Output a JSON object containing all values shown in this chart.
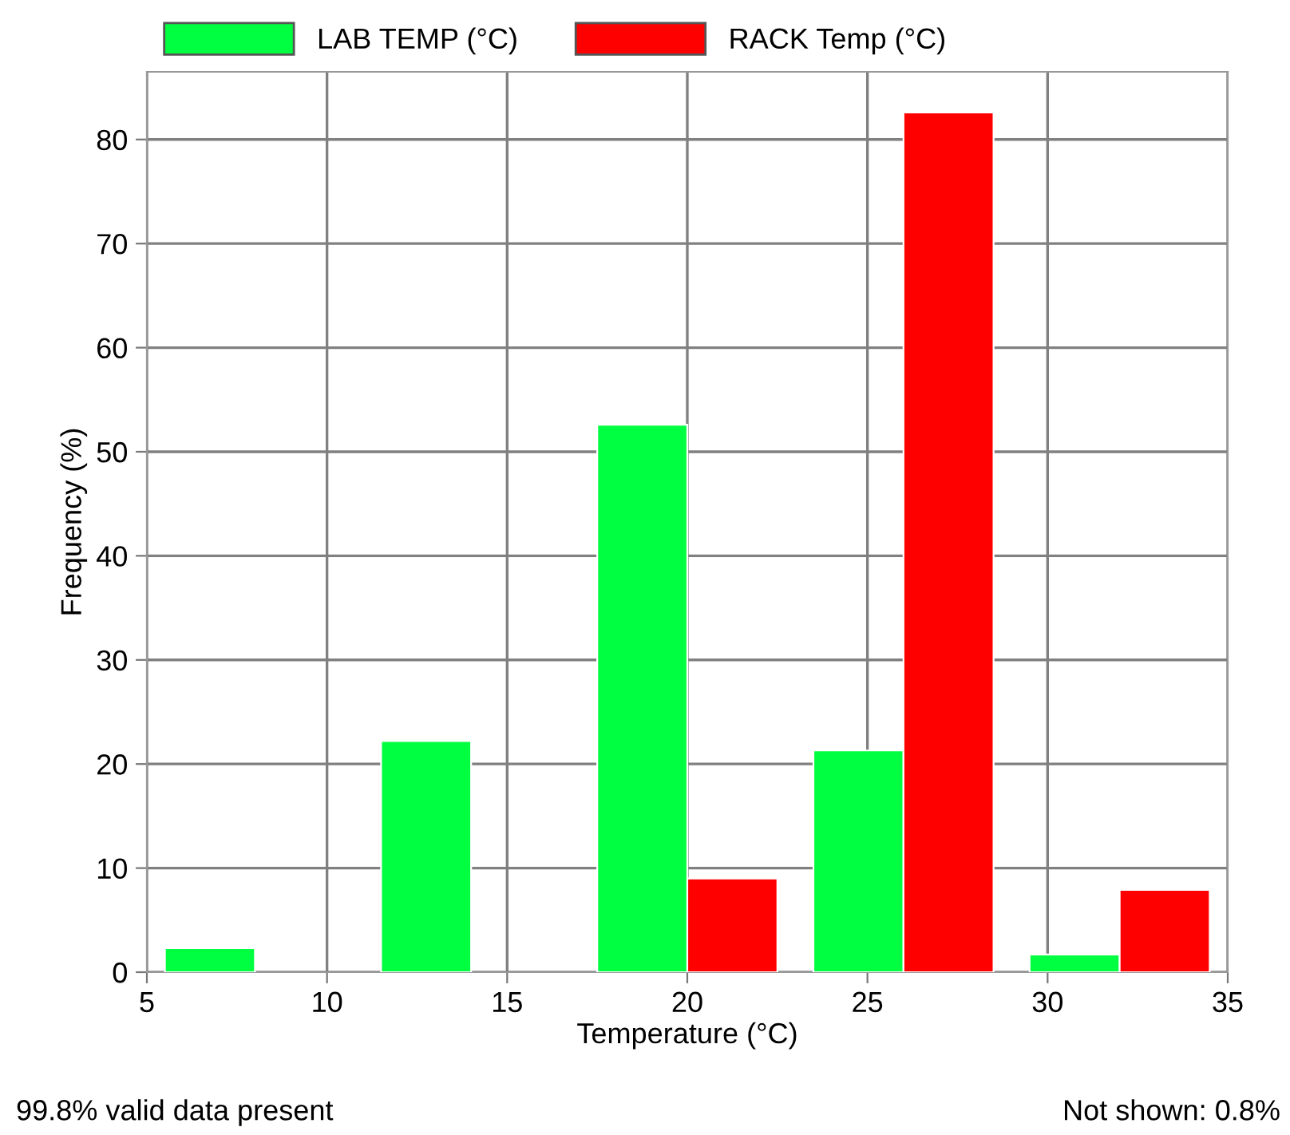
{
  "chart_data": {
    "type": "histogram",
    "xlabel": "Temperature (°C)",
    "ylabel": "Frequency (%)",
    "bins": [
      5,
      11,
      17,
      23,
      29,
      35
    ],
    "series": [
      {
        "name": "LAB TEMP (°C)",
        "color": "#00ff40",
        "values": [
          2.3,
          22.2,
          52.6,
          21.3,
          1.7
        ]
      },
      {
        "name": "RACK Temp (°C)",
        "color": "#ff0000",
        "values": [
          0,
          0,
          9.0,
          82.6,
          7.9
        ]
      }
    ],
    "xlim": [
      5,
      35
    ],
    "xticks": [
      5,
      10,
      15,
      20,
      25,
      30,
      35
    ],
    "ylim": [
      0,
      86.5
    ],
    "yticks": [
      0,
      10,
      20,
      30,
      40,
      50,
      60,
      70,
      80
    ],
    "grid": true,
    "legend": "top",
    "annotations": [
      "99.8% valid data present",
      "Not shown: 0.8%"
    ]
  }
}
